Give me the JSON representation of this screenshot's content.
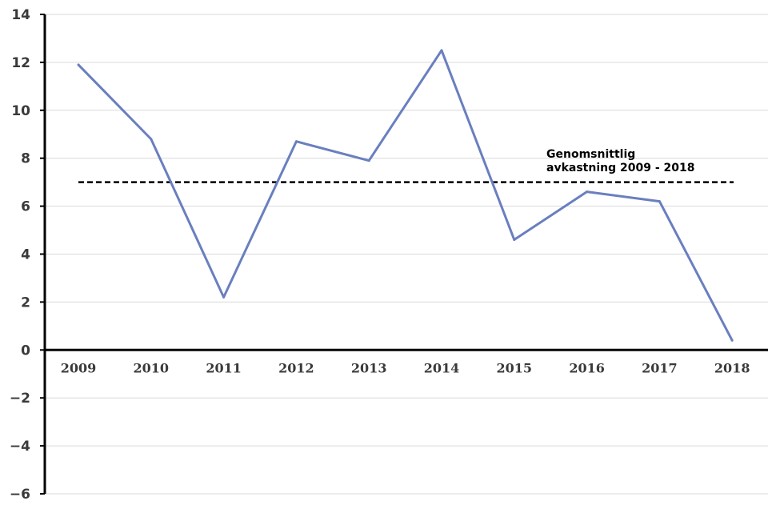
{
  "chart_data": {
    "type": "line",
    "title": "",
    "xlabel": "",
    "ylabel": "",
    "categories": [
      "2009",
      "2010",
      "2011",
      "2012",
      "2013",
      "2014",
      "2015",
      "2016",
      "2017",
      "2018"
    ],
    "series": [
      {
        "values": [
          11.9,
          8.8,
          2.2,
          8.7,
          7.9,
          12.5,
          4.6,
          6.6,
          6.2,
          0.4
        ],
        "color": "#6a7fbf"
      }
    ],
    "reference_line": {
      "value": 7.0,
      "style": "dashed",
      "color": "#000000",
      "label_lines": [
        "Genomsnittlig",
        "avkastning 2009 - 2018"
      ]
    },
    "ylim": [
      -6,
      14
    ],
    "yticks": [
      14,
      12,
      10,
      8,
      6,
      4,
      2,
      0,
      -2,
      -4,
      -6
    ],
    "ytick_labels": [
      "14",
      "12",
      "10",
      "8",
      "6",
      "4",
      "2",
      "0",
      "−2",
      "−4",
      "−6"
    ],
    "grid": "horizontal",
    "legend": "none"
  }
}
